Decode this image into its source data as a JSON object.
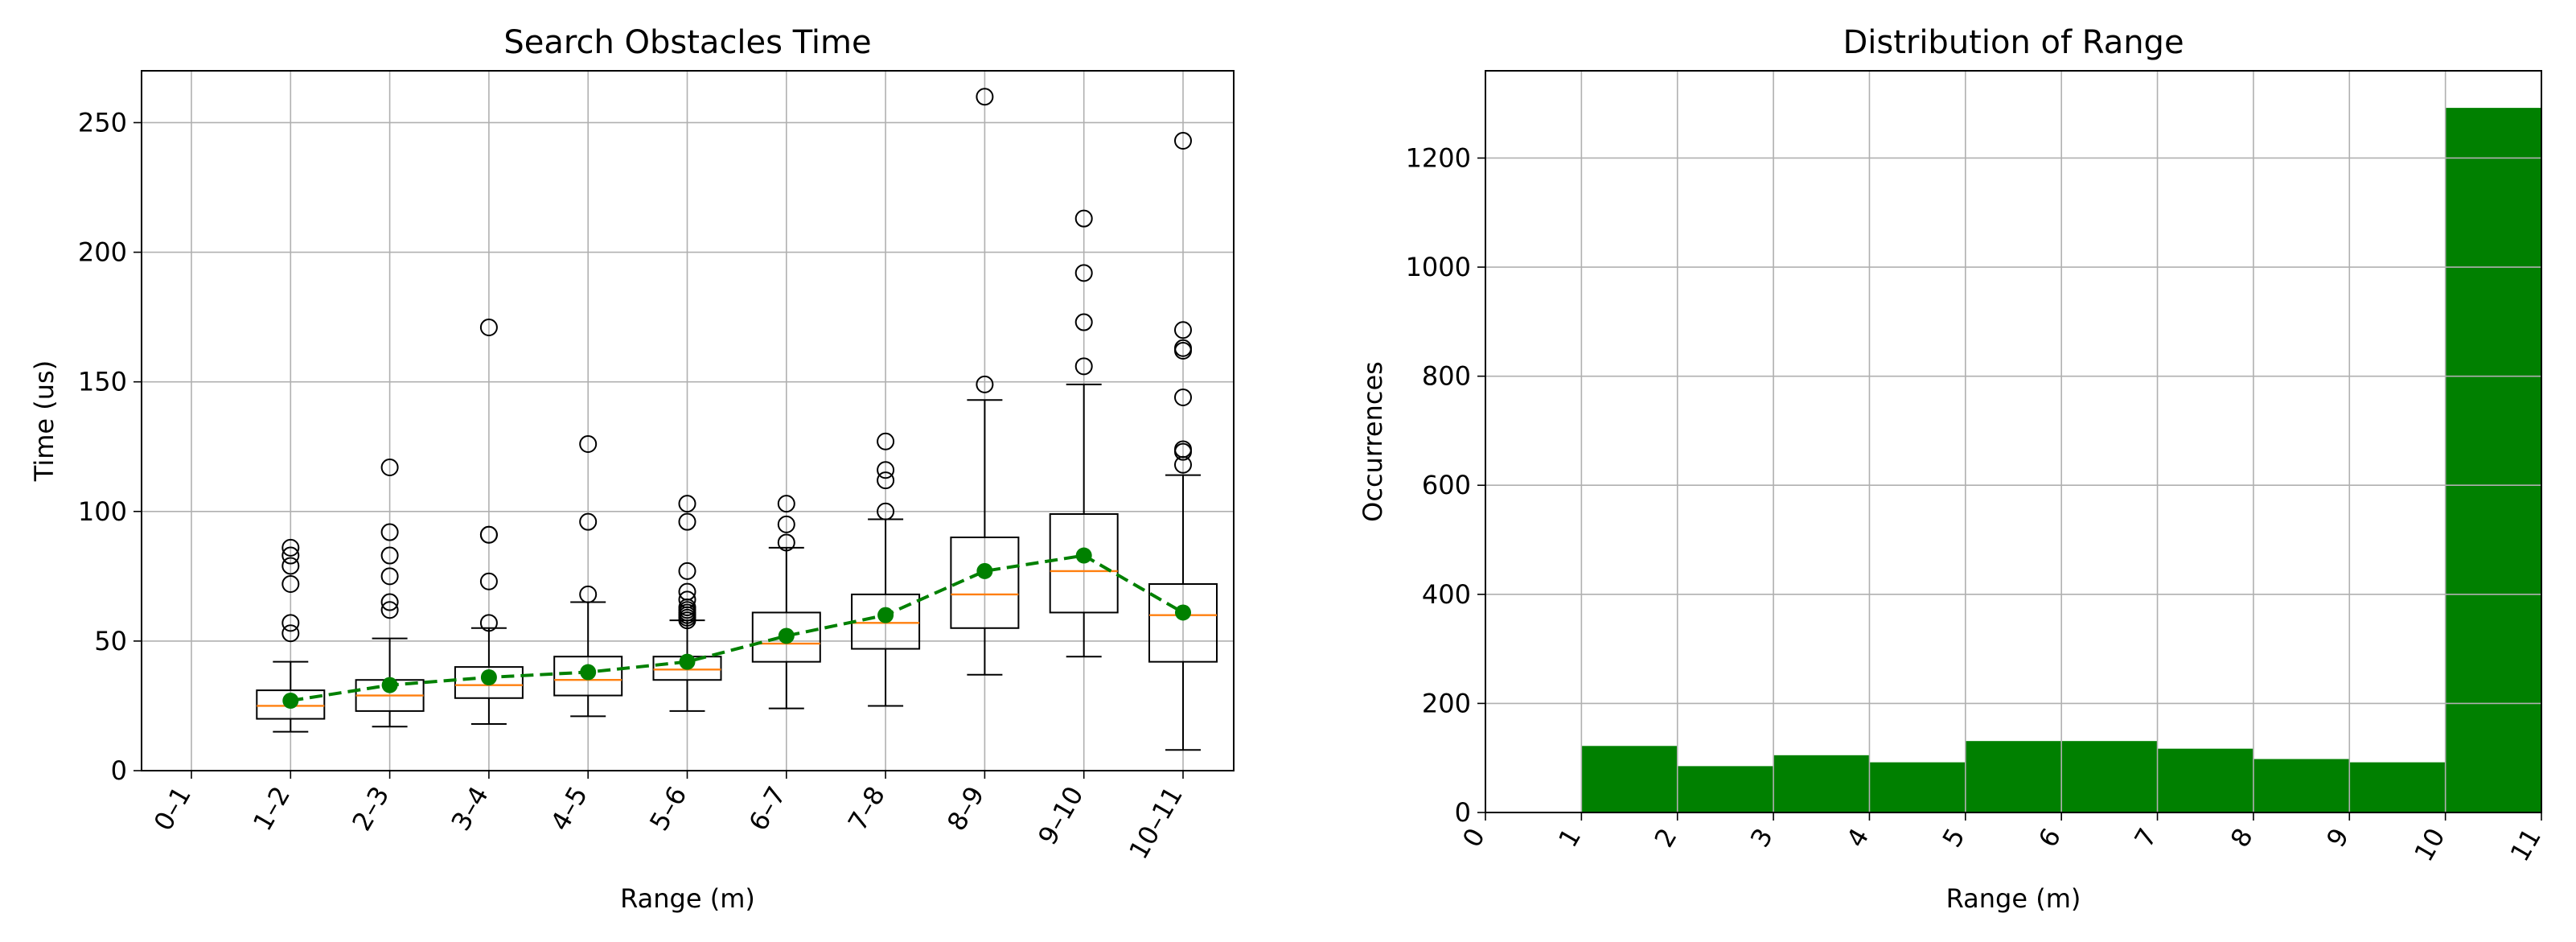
{
  "chart_data": [
    {
      "type": "box",
      "title": "Search Obstacles Time",
      "xlabel": "Range (m)",
      "ylabel": "Time (us)",
      "categories": [
        "0–1",
        "1–2",
        "2–3",
        "3–4",
        "4–5",
        "5–6",
        "6–7",
        "7–8",
        "8–9",
        "9–10",
        "10–11"
      ],
      "ylim": [
        0,
        270
      ],
      "yticks": [
        0,
        50,
        100,
        150,
        200,
        250
      ],
      "grid": true,
      "colors": {
        "box": "#000000",
        "median": "#ff7f0e",
        "mean_line": "#008000",
        "flier": "#000000"
      },
      "boxes": [
        null,
        {
          "whislo": 15,
          "q1": 20,
          "med": 25,
          "q3": 31,
          "whishi": 42,
          "fliers": [
            53,
            57,
            72,
            79,
            83,
            86
          ]
        },
        {
          "whislo": 17,
          "q1": 23,
          "med": 29,
          "q3": 35,
          "whishi": 51,
          "fliers": [
            62,
            65,
            75,
            83,
            92,
            117
          ]
        },
        {
          "whislo": 18,
          "q1": 28,
          "med": 33,
          "q3": 40,
          "whishi": 55,
          "fliers": [
            57,
            73,
            91,
            91,
            171
          ]
        },
        {
          "whislo": 21,
          "q1": 29,
          "med": 35,
          "q3": 44,
          "whishi": 65,
          "fliers": [
            68,
            96,
            126
          ]
        },
        {
          "whislo": 23,
          "q1": 35,
          "med": 39,
          "q3": 44,
          "whishi": 58,
          "fliers": [
            58,
            59,
            60,
            61,
            62,
            63,
            66,
            69,
            77,
            96,
            103
          ]
        },
        {
          "whislo": 24,
          "q1": 42,
          "med": 49,
          "q3": 61,
          "whishi": 86,
          "fliers": [
            88,
            95,
            103
          ]
        },
        {
          "whislo": 25,
          "q1": 47,
          "med": 57,
          "q3": 68,
          "whishi": 97,
          "fliers": [
            100,
            112,
            116,
            127
          ]
        },
        {
          "whislo": 37,
          "q1": 55,
          "med": 68,
          "q3": 90,
          "whishi": 143,
          "fliers": [
            149,
            260
          ]
        },
        {
          "whislo": 44,
          "q1": 61,
          "med": 77,
          "q3": 99,
          "whishi": 149,
          "fliers": [
            156,
            173,
            192,
            213
          ]
        },
        {
          "whislo": 8,
          "q1": 42,
          "med": 60,
          "q3": 72,
          "whishi": 114,
          "fliers": [
            118,
            123,
            124,
            144,
            162,
            163,
            170,
            243
          ]
        }
      ],
      "mean_line": {
        "categories": [
          "1–2",
          "2–3",
          "3–4",
          "4–5",
          "5–6",
          "6–7",
          "7–8",
          "8–9",
          "9–10",
          "10–11"
        ],
        "values": [
          27,
          33,
          36,
          38,
          42,
          52,
          60,
          77,
          83,
          61
        ]
      }
    },
    {
      "type": "bar",
      "title": "Distribution of Range",
      "xlabel": "Range (m)",
      "ylabel": "Occurrences",
      "bin_edges": [
        0,
        1,
        2,
        3,
        4,
        5,
        6,
        7,
        8,
        9,
        10,
        11
      ],
      "xtick_labels": [
        "0",
        "1",
        "2",
        "3",
        "4",
        "5",
        "6",
        "7",
        "8",
        "9",
        "10",
        "11"
      ],
      "values": [
        0,
        122,
        85,
        105,
        92,
        131,
        131,
        117,
        98,
        92,
        1292
      ],
      "ylim": [
        0,
        1360
      ],
      "yticks": [
        0,
        200,
        400,
        600,
        800,
        1000,
        1200
      ],
      "grid": true,
      "colors": {
        "bar": "#008000"
      }
    }
  ]
}
